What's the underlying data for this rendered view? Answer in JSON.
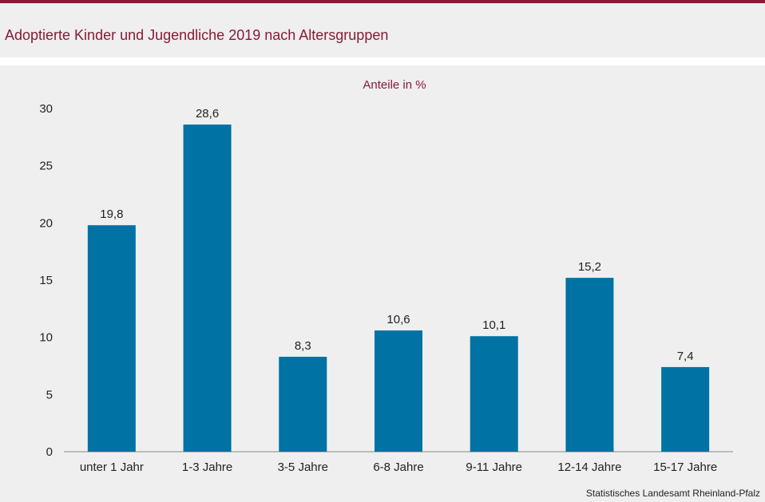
{
  "header": {
    "title": "Adoptierte Kinder und Jugendliche 2019 nach Altersgruppen"
  },
  "chart_data": {
    "type": "bar",
    "subtitle": "Anteile in %",
    "categories": [
      "unter 1 Jahr",
      "1-3 Jahre",
      "3-5 Jahre",
      "6-8 Jahre",
      "9-11 Jahre",
      "12-14 Jahre",
      "15-17 Jahre"
    ],
    "values": [
      19.8,
      28.6,
      8.3,
      10.6,
      10.1,
      15.2,
      7.4
    ],
    "data_labels": [
      "19,8",
      "28,6",
      "8,3",
      "10,6",
      "10,1",
      "15,2",
      "7,4"
    ],
    "ylim": [
      0,
      30
    ],
    "yticks": [
      0,
      5,
      10,
      15,
      20,
      25,
      30
    ],
    "grid": false,
    "legend": "none",
    "bar_color": "#0072a3"
  },
  "footer": {
    "source": "Statistisches Landesamt Rheinland-Pfalz"
  }
}
